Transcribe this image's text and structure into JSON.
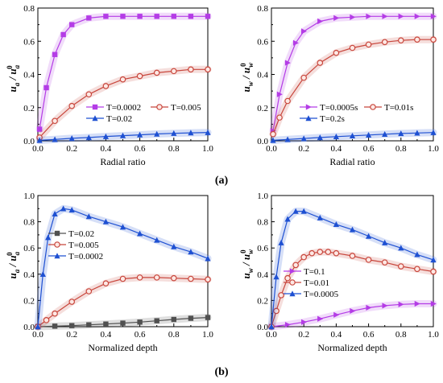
{
  "figure": {
    "panel_labels": {
      "a": "(a)",
      "b": "(b)"
    }
  },
  "chart_data": [
    {
      "type": "line",
      "xlabel": "Radial ratio",
      "ylabel": {
        "base": "u",
        "sub": "a",
        "den_sub": "a",
        "den_sup": "0"
      },
      "xlim": [
        0,
        1.0
      ],
      "ylim": [
        0,
        0.8
      ],
      "xticks": [
        0.0,
        0.2,
        0.4,
        0.6,
        0.8,
        1.0
      ],
      "yticks": [
        0.0,
        0.2,
        0.4,
        0.6,
        0.8
      ],
      "xtick_labels": [
        "0.0",
        "0.2",
        "0.4",
        "0.6",
        "0.8",
        "1.0"
      ],
      "ytick_labels": [
        "0.0",
        "0.2",
        "0.4",
        "0.6",
        "0.8"
      ],
      "legend_placement": "bottom-right",
      "legend_cols": 2,
      "series": [
        {
          "name": "T=0.0002",
          "color": "#b43ce6",
          "marker": "square",
          "x": [
            0.01,
            0.05,
            0.1,
            0.15,
            0.2,
            0.3,
            0.4,
            0.5,
            0.6,
            0.7,
            0.8,
            0.9,
            1.0
          ],
          "y": [
            0.07,
            0.32,
            0.52,
            0.64,
            0.7,
            0.74,
            0.75,
            0.75,
            0.75,
            0.75,
            0.75,
            0.75,
            0.75
          ]
        },
        {
          "name": "T=0.005",
          "color": "#c8463c",
          "marker": "circle",
          "x": [
            0.01,
            0.1,
            0.2,
            0.3,
            0.4,
            0.5,
            0.6,
            0.7,
            0.8,
            0.9,
            1.0
          ],
          "y": [
            0.02,
            0.12,
            0.21,
            0.28,
            0.33,
            0.37,
            0.39,
            0.41,
            0.42,
            0.43,
            0.43
          ]
        },
        {
          "name": "T=0.02",
          "color": "#1e50d2",
          "marker": "triangle",
          "x": [
            0.01,
            0.1,
            0.2,
            0.3,
            0.4,
            0.5,
            0.6,
            0.7,
            0.8,
            0.9,
            1.0
          ],
          "y": [
            0.003,
            0.008,
            0.015,
            0.02,
            0.026,
            0.031,
            0.036,
            0.041,
            0.045,
            0.048,
            0.05
          ]
        }
      ]
    },
    {
      "type": "line",
      "xlabel": "Radial ratio",
      "ylabel": {
        "base": "u",
        "sub": "w",
        "den_sub": "w",
        "den_sup": "0"
      },
      "xlim": [
        0,
        1.0
      ],
      "ylim": [
        0,
        0.8
      ],
      "xticks": [
        0.0,
        0.2,
        0.4,
        0.6,
        0.8,
        1.0
      ],
      "yticks": [
        0.0,
        0.2,
        0.4,
        0.6,
        0.8
      ],
      "xtick_labels": [
        "0.0",
        "0.2",
        "0.4",
        "0.6",
        "0.8",
        "1.0"
      ],
      "ytick_labels": [
        "0.0",
        "0.2",
        "0.4",
        "0.6",
        "0.8"
      ],
      "legend_placement": "bottom-right",
      "legend_cols": 2,
      "series": [
        {
          "name": "T=0.0005s",
          "color": "#b43ce6",
          "marker": "triangle-right",
          "x": [
            0.01,
            0.05,
            0.1,
            0.15,
            0.2,
            0.3,
            0.4,
            0.5,
            0.6,
            0.7,
            0.8,
            0.9,
            1.0
          ],
          "y": [
            0.06,
            0.28,
            0.47,
            0.59,
            0.66,
            0.72,
            0.74,
            0.745,
            0.75,
            0.75,
            0.75,
            0.75,
            0.75
          ]
        },
        {
          "name": "T=0.01s",
          "color": "#c8463c",
          "marker": "circle",
          "x": [
            0.01,
            0.05,
            0.1,
            0.2,
            0.3,
            0.4,
            0.5,
            0.6,
            0.7,
            0.8,
            0.9,
            1.0
          ],
          "y": [
            0.04,
            0.14,
            0.24,
            0.38,
            0.47,
            0.53,
            0.56,
            0.58,
            0.595,
            0.605,
            0.61,
            0.61
          ]
        },
        {
          "name": "T=0.2s",
          "color": "#1e50d2",
          "marker": "triangle",
          "x": [
            0.01,
            0.1,
            0.2,
            0.3,
            0.4,
            0.5,
            0.6,
            0.7,
            0.8,
            0.9,
            1.0
          ],
          "y": [
            0.003,
            0.008,
            0.014,
            0.02,
            0.025,
            0.03,
            0.035,
            0.04,
            0.044,
            0.047,
            0.05
          ]
        }
      ]
    },
    {
      "type": "line",
      "xlabel": "Normalized depth",
      "ylabel": {
        "base": "u",
        "sub": "a",
        "den_sub": "a",
        "den_sup": "0"
      },
      "xlim": [
        0,
        1.0
      ],
      "ylim": [
        0,
        1.0
      ],
      "xticks": [
        0.0,
        0.2,
        0.4,
        0.6,
        0.8,
        1.0
      ],
      "yticks": [
        0.0,
        0.2,
        0.4,
        0.6,
        0.8,
        1.0
      ],
      "xtick_labels": [
        "0.0",
        "0.2",
        "0.4",
        "0.6",
        "0.8",
        "1.0"
      ],
      "ytick_labels": [
        "0.0",
        "0.2",
        "0.4",
        "0.6",
        "0.8",
        "1.0"
      ],
      "legend_placement": "top-left",
      "legend_cols": 1,
      "series": [
        {
          "name": "T=0.02",
          "color": "#505050",
          "marker": "square",
          "x": [
            0.0,
            0.1,
            0.2,
            0.3,
            0.4,
            0.5,
            0.6,
            0.7,
            0.8,
            0.9,
            1.0
          ],
          "y": [
            0.0,
            0.004,
            0.008,
            0.014,
            0.02,
            0.027,
            0.035,
            0.045,
            0.055,
            0.064,
            0.07
          ]
        },
        {
          "name": "T=0.005",
          "color": "#c8463c",
          "marker": "circle",
          "x": [
            0.0,
            0.05,
            0.1,
            0.2,
            0.3,
            0.4,
            0.5,
            0.6,
            0.7,
            0.8,
            0.9,
            1.0
          ],
          "y": [
            0.0,
            0.05,
            0.1,
            0.19,
            0.27,
            0.33,
            0.365,
            0.375,
            0.375,
            0.37,
            0.365,
            0.36
          ]
        },
        {
          "name": "T=0.0002",
          "color": "#1e50d2",
          "marker": "triangle",
          "x": [
            0.0,
            0.03,
            0.06,
            0.1,
            0.15,
            0.2,
            0.3,
            0.4,
            0.5,
            0.6,
            0.7,
            0.8,
            0.9,
            1.0
          ],
          "y": [
            0.0,
            0.4,
            0.68,
            0.86,
            0.9,
            0.89,
            0.84,
            0.8,
            0.76,
            0.71,
            0.66,
            0.61,
            0.57,
            0.52
          ]
        }
      ]
    },
    {
      "type": "line",
      "xlabel": "Normalized depth",
      "ylabel": {
        "base": "u",
        "sub": "w",
        "den_sub": "w",
        "den_sup": "0"
      },
      "xlim": [
        0,
        1.0
      ],
      "ylim": [
        0,
        1.0
      ],
      "xticks": [
        0.0,
        0.2,
        0.4,
        0.6,
        0.8,
        1.0
      ],
      "yticks": [
        0.0,
        0.2,
        0.4,
        0.6,
        0.8,
        1.0
      ],
      "xtick_labels": [
        "0.0",
        "0.2",
        "0.4",
        "0.6",
        "0.8",
        "1.0"
      ],
      "ytick_labels": [
        "0.0",
        "0.2",
        "0.4",
        "0.6",
        "0.8",
        "1.0"
      ],
      "legend_placement": "bottom-left",
      "legend_cols": 1,
      "series": [
        {
          "name": "T=0.1",
          "color": "#b43ce6",
          "marker": "triangle-right",
          "x": [
            0.0,
            0.1,
            0.2,
            0.3,
            0.4,
            0.5,
            0.6,
            0.7,
            0.8,
            0.9,
            1.0
          ],
          "y": [
            0.0,
            0.015,
            0.035,
            0.06,
            0.09,
            0.12,
            0.145,
            0.16,
            0.17,
            0.175,
            0.175
          ]
        },
        {
          "name": "T=0.01",
          "color": "#c8463c",
          "marker": "circle",
          "x": [
            0.0,
            0.03,
            0.06,
            0.1,
            0.15,
            0.2,
            0.25,
            0.3,
            0.35,
            0.4,
            0.5,
            0.6,
            0.7,
            0.8,
            0.9,
            1.0
          ],
          "y": [
            0.0,
            0.12,
            0.24,
            0.37,
            0.47,
            0.53,
            0.56,
            0.57,
            0.57,
            0.56,
            0.54,
            0.51,
            0.49,
            0.46,
            0.44,
            0.42
          ]
        },
        {
          "name": "T=0.0005",
          "color": "#1e50d2",
          "marker": "triangle",
          "x": [
            0.0,
            0.03,
            0.06,
            0.1,
            0.15,
            0.2,
            0.3,
            0.4,
            0.5,
            0.6,
            0.7,
            0.8,
            0.9,
            1.0
          ],
          "y": [
            0.0,
            0.38,
            0.64,
            0.82,
            0.88,
            0.88,
            0.83,
            0.78,
            0.74,
            0.69,
            0.64,
            0.6,
            0.55,
            0.51
          ]
        }
      ]
    }
  ]
}
